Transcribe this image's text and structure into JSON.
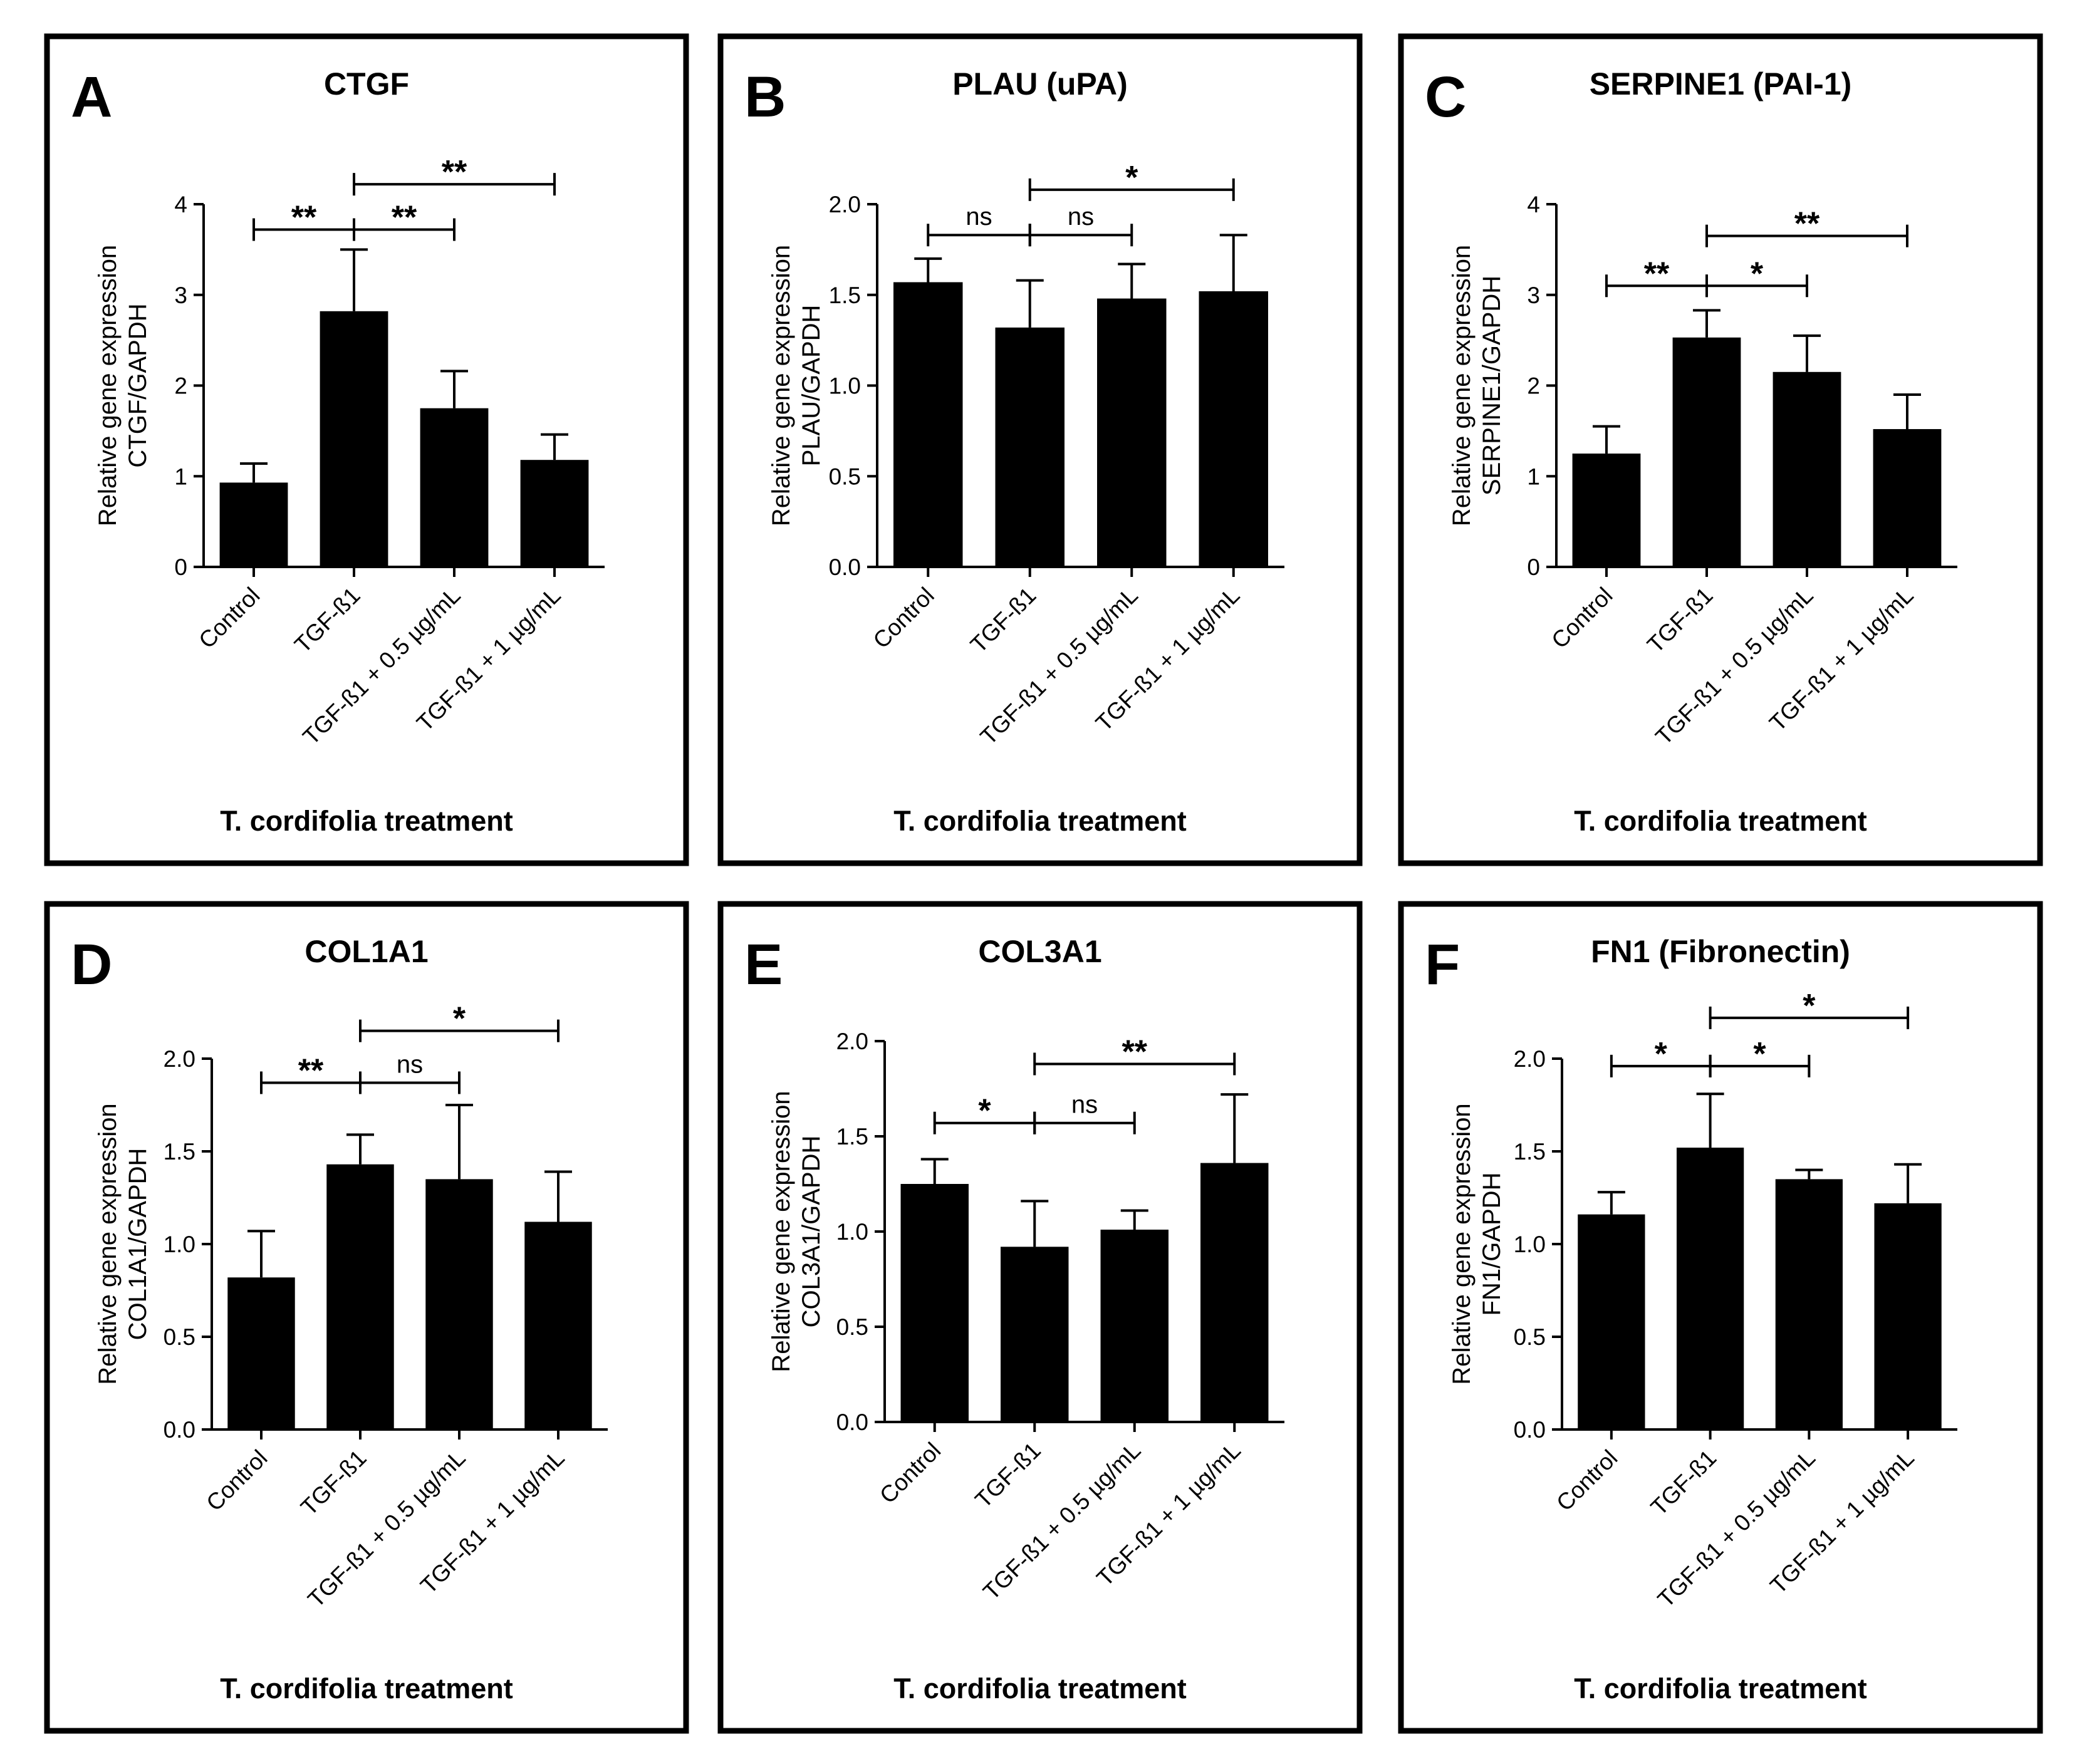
{
  "figure": {
    "background": "#ffffff",
    "bar_color": "#000000",
    "frame_color": "#000000"
  },
  "chart_data": [
    {
      "panel": "A",
      "type": "bar",
      "title": "CTGF",
      "ylabel_lines": [
        "Relative gene expression",
        "CTGF/GAPDH"
      ],
      "xlabel": "T. cordifolia treatment",
      "categories": [
        "Control",
        "TGF-ß1",
        "TGF-ß1 + 0.5 µg/mL",
        "TGF-ß1 + 1 µg/mL"
      ],
      "values": [
        0.93,
        2.82,
        1.75,
        1.18
      ],
      "errors": [
        0.21,
        0.68,
        0.41,
        0.28
      ],
      "ylim": [
        0,
        4
      ],
      "yticks": [
        "0",
        "1",
        "2",
        "3",
        "4"
      ],
      "significance": [
        {
          "from": 0,
          "to": 1,
          "label": "**",
          "y": 3.72
        },
        {
          "from": 1,
          "to": 2,
          "label": "**",
          "y": 3.72
        },
        {
          "from": 1,
          "to": 3,
          "label": "**",
          "y": 4.22
        }
      ]
    },
    {
      "panel": "B",
      "type": "bar",
      "title": "PLAU (uPA)",
      "ylabel_lines": [
        "Relative gene expression",
        "PLAU/GAPDH"
      ],
      "xlabel": "T. cordifolia treatment",
      "categories": [
        "Control",
        "TGF-ß1",
        "TGF-ß1 + 0.5 µg/mL",
        "TGF-ß1 + 1 µg/mL"
      ],
      "values": [
        1.57,
        1.32,
        1.48,
        1.52
      ],
      "errors": [
        0.13,
        0.26,
        0.19,
        0.31
      ],
      "ylim": [
        0,
        2
      ],
      "yticks": [
        "0.0",
        "0.5",
        "1.0",
        "1.5",
        "2.0"
      ],
      "significance": [
        {
          "from": 0,
          "to": 1,
          "label": "ns",
          "y": 1.83
        },
        {
          "from": 1,
          "to": 2,
          "label": "ns",
          "y": 1.83
        },
        {
          "from": 1,
          "to": 3,
          "label": "*",
          "y": 2.08
        }
      ]
    },
    {
      "panel": "C",
      "type": "bar",
      "title": "SERPINE1 (PAI-1)",
      "ylabel_lines": [
        "Relative gene expression",
        "SERPINE1/GAPDH"
      ],
      "xlabel": "T. cordifolia treatment",
      "categories": [
        "Control",
        "TGF-ß1",
        "TGF-ß1 + 0.5 µg/mL",
        "TGF-ß1 + 1 µg/mL"
      ],
      "values": [
        1.25,
        2.53,
        2.15,
        1.52
      ],
      "errors": [
        0.3,
        0.3,
        0.4,
        0.38
      ],
      "ylim": [
        0,
        4
      ],
      "yticks": [
        "0",
        "1",
        "2",
        "3",
        "4"
      ],
      "significance": [
        {
          "from": 0,
          "to": 1,
          "label": "**",
          "y": 3.1
        },
        {
          "from": 1,
          "to": 2,
          "label": "*",
          "y": 3.1
        },
        {
          "from": 1,
          "to": 3,
          "label": "**",
          "y": 3.65
        }
      ]
    },
    {
      "panel": "D",
      "type": "bar",
      "title": "COL1A1",
      "ylabel_lines": [
        "Relative gene expression",
        "COL1A1/GAPDH"
      ],
      "xlabel": "T. cordifolia treatment",
      "categories": [
        "Control",
        "TGF-ß1",
        "TGF-ß1 + 0.5 µg/mL",
        "TGF-ß1 + 1 µg/mL"
      ],
      "values": [
        0.82,
        1.43,
        1.35,
        1.12
      ],
      "errors": [
        0.25,
        0.16,
        0.4,
        0.27
      ],
      "ylim": [
        0,
        2
      ],
      "yticks": [
        "0.0",
        "0.5",
        "1.0",
        "1.5",
        "2.0"
      ],
      "significance": [
        {
          "from": 0,
          "to": 1,
          "label": "**",
          "y": 1.87
        },
        {
          "from": 1,
          "to": 2,
          "label": "ns",
          "y": 1.87
        },
        {
          "from": 1,
          "to": 3,
          "label": "*",
          "y": 2.15
        }
      ]
    },
    {
      "panel": "E",
      "type": "bar",
      "title": "COL3A1",
      "ylabel_lines": [
        "Relative gene expression",
        "COL3A1/GAPDH"
      ],
      "xlabel": "T. cordifolia treatment",
      "categories": [
        "Control",
        "TGF-ß1",
        "TGF-ß1 + 0.5 µg/mL",
        "TGF-ß1 + 1 µg/mL"
      ],
      "values": [
        1.25,
        0.92,
        1.01,
        1.36
      ],
      "errors": [
        0.13,
        0.24,
        0.1,
        0.36
      ],
      "ylim": [
        0,
        2
      ],
      "yticks": [
        "0.0",
        "0.5",
        "1.0",
        "1.5",
        "2.0"
      ],
      "significance": [
        {
          "from": 0,
          "to": 1,
          "label": "*",
          "y": 1.57
        },
        {
          "from": 1,
          "to": 2,
          "label": "ns",
          "y": 1.57
        },
        {
          "from": 1,
          "to": 3,
          "label": "**",
          "y": 1.88
        }
      ]
    },
    {
      "panel": "F",
      "type": "bar",
      "title": "FN1 (Fibronectin)",
      "ylabel_lines": [
        "Relative gene expression",
        "FN1/GAPDH"
      ],
      "xlabel": "T. cordifolia treatment",
      "categories": [
        "Control",
        "TGF-ß1",
        "TGF-ß1 + 0.5 µg/mL",
        "TGF-ß1 + 1 µg/mL"
      ],
      "values": [
        1.16,
        1.52,
        1.35,
        1.22
      ],
      "errors": [
        0.12,
        0.29,
        0.05,
        0.21
      ],
      "ylim": [
        0,
        2
      ],
      "yticks": [
        "0.0",
        "0.5",
        "1.0",
        "1.5",
        "2.0"
      ],
      "significance": [
        {
          "from": 0,
          "to": 1,
          "label": "*",
          "y": 1.96
        },
        {
          "from": 1,
          "to": 2,
          "label": "*",
          "y": 1.96
        },
        {
          "from": 1,
          "to": 3,
          "label": "*",
          "y": 2.22
        }
      ]
    }
  ]
}
